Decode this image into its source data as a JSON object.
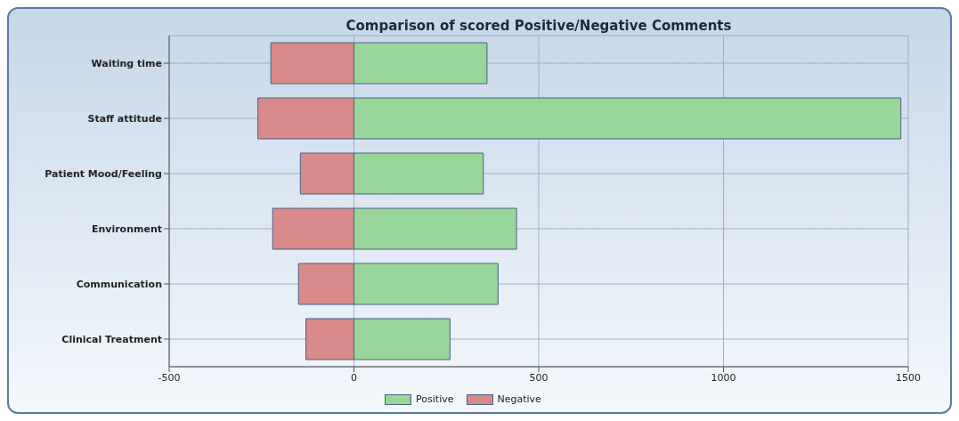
{
  "chart_data": {
    "type": "bar",
    "title": "Comparison of scored Positive/Negative Comments",
    "orientation": "horizontal",
    "stacked": true,
    "categories": [
      "Waiting time",
      "Staff attitude",
      "Patient Mood/Feeling",
      "Environment",
      "Communication",
      "Clinical Treatment"
    ],
    "series": [
      {
        "name": "Positive",
        "color": "#98d69a",
        "values": [
          360,
          1480,
          350,
          440,
          390,
          260
        ]
      },
      {
        "name": "Negative",
        "color": "#d98a8a",
        "values": [
          -225,
          -260,
          -145,
          -220,
          -150,
          -130
        ]
      }
    ],
    "xlim": [
      -500,
      1500
    ],
    "xticks": [
      -500,
      0,
      500,
      1000,
      1500
    ],
    "grid": true,
    "legend": "bottom"
  }
}
